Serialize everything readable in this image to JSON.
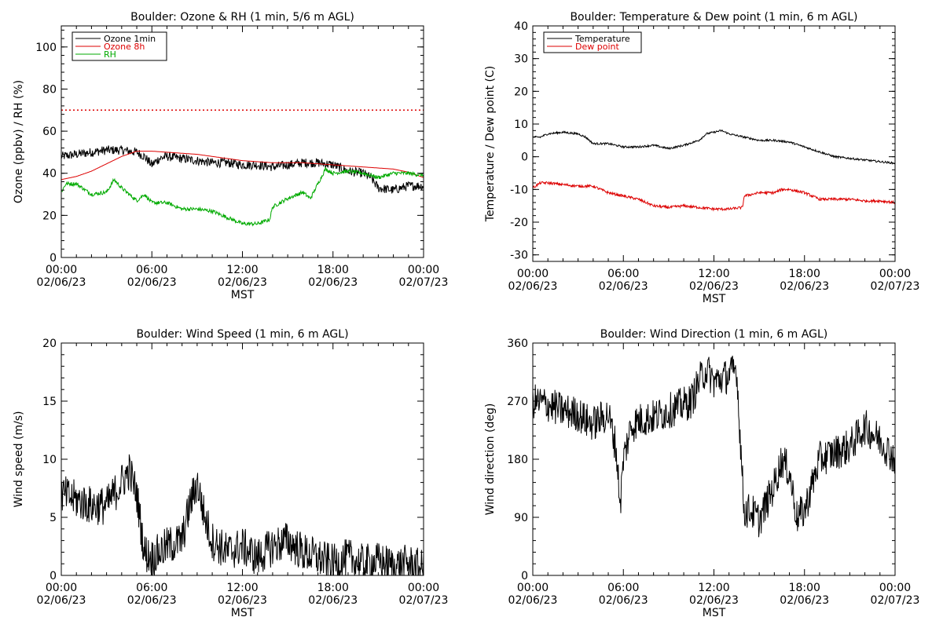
{
  "chart_data": [
    {
      "type": "line",
      "title": "Boulder: Ozone & RH (1 min, 5/6 m AGL)",
      "xlabel": "MST",
      "ylabel": "Ozone (ppbv) / RH (%)",
      "xlim": [
        0,
        24
      ],
      "ylim": [
        0,
        110
      ],
      "yticks": [
        0,
        20,
        40,
        60,
        80,
        100
      ],
      "xtick_labels": [
        {
          "time": "00:00",
          "date": "02/06/23"
        },
        {
          "time": "06:00",
          "date": "02/06/23"
        },
        {
          "time": "12:00",
          "date": "02/06/23"
        },
        {
          "time": "18:00",
          "date": "02/06/23"
        },
        {
          "time": "00:00",
          "date": "02/07/23"
        }
      ],
      "legend": "top-left",
      "reference_line": {
        "y": 70,
        "color": "#dd0000",
        "style": "dotted"
      },
      "series": [
        {
          "name": "Ozone 1min",
          "color": "#000000",
          "noise": 2.2,
          "x": [
            0,
            1,
            2,
            3,
            4,
            5,
            5.5,
            6,
            6.5,
            7,
            8,
            9,
            10,
            11,
            12,
            13,
            14,
            15,
            16,
            17,
            18,
            19,
            20,
            20.5,
            21,
            22,
            23,
            24
          ],
          "y": [
            48,
            49,
            50,
            51,
            51,
            50,
            48,
            44,
            47,
            48,
            47,
            46,
            45,
            45,
            44,
            44,
            43,
            44,
            45,
            45,
            44,
            41,
            40,
            38,
            33,
            32,
            34,
            34
          ]
        },
        {
          "name": "Ozone 8h",
          "color": "#dd0000",
          "noise": 0,
          "x": [
            0,
            1,
            2,
            3,
            4,
            5,
            6,
            7,
            8,
            9,
            10,
            11,
            12,
            13,
            14,
            15,
            16,
            17,
            18,
            19,
            20,
            21,
            22,
            23,
            24
          ],
          "y": [
            37,
            38.5,
            41,
            44.5,
            48,
            50.5,
            50.5,
            50,
            49.5,
            49,
            48,
            47,
            46,
            45.5,
            45,
            45,
            45,
            44.5,
            44,
            43.5,
            43,
            42.5,
            42,
            40.5,
            38
          ]
        },
        {
          "name": "RH",
          "color": "#00aa00",
          "noise": 0.9,
          "x": [
            0,
            0.3,
            1,
            2,
            3,
            3.5,
            4,
            5,
            5.5,
            6,
            7,
            8,
            9,
            10,
            11,
            12,
            13,
            13.8,
            14,
            15,
            16,
            16.5,
            17,
            17.5,
            18,
            19,
            20,
            21,
            22,
            23,
            24
          ],
          "y": [
            31,
            35,
            35,
            30,
            31,
            37,
            33,
            27,
            30,
            26,
            26,
            23,
            23,
            22,
            19,
            16,
            16,
            18,
            24,
            28,
            31,
            28,
            35,
            42,
            40,
            41,
            40,
            38,
            40,
            40,
            39
          ]
        }
      ]
    },
    {
      "type": "line",
      "title": "Boulder: Temperature & Dew point (1 min, 6 m AGL)",
      "xlabel": "MST",
      "ylabel": "Temperature / Dew point (C)",
      "xlim": [
        0,
        24
      ],
      "ylim": [
        -32,
        40
      ],
      "yticks": [
        -30,
        -20,
        -10,
        0,
        10,
        20,
        30,
        40
      ],
      "xtick_labels": [
        {
          "time": "00:00",
          "date": "02/06/23"
        },
        {
          "time": "06:00",
          "date": "02/06/23"
        },
        {
          "time": "12:00",
          "date": "02/06/23"
        },
        {
          "time": "18:00",
          "date": "02/06/23"
        },
        {
          "time": "00:00",
          "date": "02/07/23"
        }
      ],
      "legend": "top-left",
      "series": [
        {
          "name": "Temperature",
          "color": "#000000",
          "noise": 0.3,
          "x": [
            0,
            0.5,
            1,
            2,
            3,
            3.5,
            4,
            5,
            6,
            7,
            8,
            9,
            10,
            11,
            11.5,
            12,
            12.5,
            13,
            14,
            15,
            16,
            17,
            18,
            19,
            20,
            21,
            22,
            23,
            24
          ],
          "y": [
            6,
            6,
            7,
            7.5,
            7,
            6,
            4,
            4,
            3,
            3,
            3.5,
            2.5,
            3.5,
            5,
            7,
            7.5,
            8,
            7,
            6,
            5,
            5,
            4.5,
            3,
            1.5,
            0,
            -0.5,
            -1,
            -1.5,
            -2
          ]
        },
        {
          "name": "Dew point",
          "color": "#dd0000",
          "noise": 0.4,
          "x": [
            0,
            0.5,
            1,
            2,
            3,
            4,
            5,
            6,
            7,
            8,
            9,
            10,
            11,
            12,
            13,
            13.9,
            14,
            15,
            16,
            16.5,
            17,
            18,
            19,
            20,
            21,
            22,
            23,
            24
          ],
          "y": [
            -9.5,
            -8,
            -8,
            -8.5,
            -9,
            -9,
            -11,
            -12,
            -13,
            -15,
            -15.5,
            -15,
            -15.5,
            -16,
            -16,
            -15.5,
            -12,
            -11,
            -11,
            -10,
            -10,
            -11,
            -13,
            -13,
            -13,
            -13.5,
            -13.5,
            -14
          ]
        }
      ]
    },
    {
      "type": "line",
      "title": "Boulder: Wind Speed (1 min, 6 m AGL)",
      "xlabel": "MST",
      "ylabel": "Wind speed (m/s)",
      "xlim": [
        0,
        24
      ],
      "ylim": [
        0,
        20
      ],
      "yticks": [
        0,
        5,
        10,
        15,
        20
      ],
      "xtick_labels": [
        {
          "time": "00:00",
          "date": "02/06/23"
        },
        {
          "time": "06:00",
          "date": "02/06/23"
        },
        {
          "time": "12:00",
          "date": "02/06/23"
        },
        {
          "time": "18:00",
          "date": "02/06/23"
        },
        {
          "time": "00:00",
          "date": "02/07/23"
        }
      ],
      "series": [
        {
          "color": "#000000",
          "noise": 1.7,
          "floor": 0,
          "x": [
            0,
            1,
            2,
            3,
            4,
            4.5,
            5,
            5.5,
            6,
            7,
            8,
            8.5,
            9,
            9.5,
            10,
            11,
            12,
            13,
            14,
            15,
            16,
            17,
            18,
            19,
            20,
            21,
            22,
            23,
            24
          ],
          "y": [
            7,
            6.5,
            6,
            6,
            8,
            9,
            7,
            2,
            1.5,
            2.5,
            3,
            6,
            8,
            5,
            3,
            2,
            2.5,
            1.5,
            2.5,
            3,
            2,
            1.5,
            1,
            1.5,
            1,
            1.2,
            0.8,
            1,
            0.5
          ]
        }
      ]
    },
    {
      "type": "line",
      "title": "Boulder: Wind Direction (1 min, 6 m AGL)",
      "xlabel": "MST",
      "ylabel": "Wind direction (deg)",
      "xlim": [
        0,
        24
      ],
      "ylim": [
        0,
        360
      ],
      "yticks": [
        0,
        90,
        180,
        270,
        360
      ],
      "xtick_labels": [
        {
          "time": "00:00",
          "date": "02/06/23"
        },
        {
          "time": "06:00",
          "date": "02/06/23"
        },
        {
          "time": "12:00",
          "date": "02/06/23"
        },
        {
          "time": "18:00",
          "date": "02/06/23"
        },
        {
          "time": "00:00",
          "date": "02/07/23"
        }
      ],
      "series": [
        {
          "color": "#000000",
          "noise": 28,
          "floor": 0,
          "ceil": 360,
          "x": [
            0,
            1,
            2,
            3,
            3.5,
            4,
            5,
            5.5,
            5.8,
            6,
            6.5,
            7,
            8,
            9,
            10,
            10.5,
            11,
            11.5,
            12,
            13,
            13.5,
            14,
            14.5,
            15,
            16,
            16.5,
            17,
            17.5,
            18,
            19,
            20,
            21,
            22,
            23,
            24
          ],
          "y": [
            270,
            265,
            255,
            250,
            240,
            235,
            250,
            200,
            110,
            180,
            230,
            240,
            245,
            255,
            265,
            270,
            300,
            320,
            300,
            310,
            320,
            100,
            100,
            85,
            140,
            180,
            160,
            90,
            100,
            180,
            190,
            200,
            230,
            210,
            180
          ]
        }
      ]
    }
  ]
}
